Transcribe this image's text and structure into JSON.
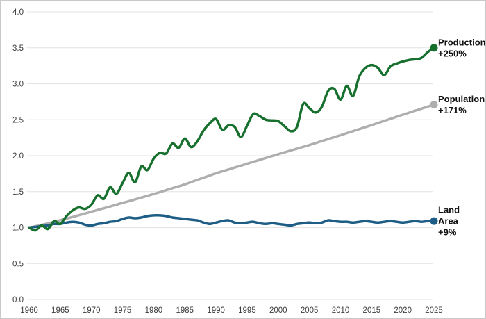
{
  "colors": {
    "background": "#ffffff",
    "frame_border": "#c9c9c9",
    "gridline": "#e3e3e3",
    "tick_text": "#3c3c3c",
    "label_text": "#111111",
    "production_green": "#17702d",
    "population_gray": "#aeaeae",
    "land_blue": "#1d5d86"
  },
  "chart_data": {
    "type": "line",
    "title": "",
    "xlabel": "",
    "ylabel": "",
    "x_start": 1960,
    "x_end": 2025,
    "x_step": 1,
    "ylim": [
      0,
      4
    ],
    "grid": true,
    "legend_position": "end-of-line-labels",
    "yticks": [
      "0.0",
      "0.5",
      "1.0",
      "1.5",
      "2.0",
      "2.5",
      "3.0",
      "3.5",
      "4.0"
    ],
    "xticks": [
      1960,
      1965,
      1970,
      1975,
      1980,
      1985,
      1990,
      1995,
      2000,
      2005,
      2010,
      2015,
      2020,
      2025
    ],
    "series": [
      {
        "name": "Population",
        "end_label_lines": [
          "Population",
          "+171%"
        ],
        "change_pct": "+171%",
        "color": "#aeaeae",
        "values": [
          1.0,
          1.018,
          1.037,
          1.058,
          1.08,
          1.102,
          1.125,
          1.148,
          1.172,
          1.196,
          1.221,
          1.245,
          1.269,
          1.293,
          1.318,
          1.343,
          1.367,
          1.392,
          1.417,
          1.442,
          1.468,
          1.494,
          1.521,
          1.548,
          1.574,
          1.601,
          1.632,
          1.663,
          1.694,
          1.724,
          1.755,
          1.782,
          1.808,
          1.835,
          1.861,
          1.888,
          1.915,
          1.941,
          1.968,
          1.994,
          2.021,
          2.046,
          2.072,
          2.097,
          2.123,
          2.148,
          2.175,
          2.203,
          2.23,
          2.258,
          2.285,
          2.313,
          2.341,
          2.369,
          2.397,
          2.425,
          2.454,
          2.483,
          2.512,
          2.541,
          2.57,
          2.598,
          2.626,
          2.654,
          2.682,
          2.71
        ]
      },
      {
        "name": "Land Area",
        "end_label_lines": [
          "Land",
          "Area",
          "+9%"
        ],
        "change_pct": "+9%",
        "color": "#1d5d86",
        "values": [
          1.0,
          1.01,
          1.02,
          1.03,
          1.05,
          1.05,
          1.07,
          1.08,
          1.07,
          1.04,
          1.03,
          1.05,
          1.06,
          1.08,
          1.09,
          1.12,
          1.14,
          1.13,
          1.14,
          1.16,
          1.17,
          1.17,
          1.16,
          1.14,
          1.13,
          1.12,
          1.11,
          1.1,
          1.07,
          1.05,
          1.07,
          1.09,
          1.1,
          1.07,
          1.06,
          1.07,
          1.08,
          1.06,
          1.05,
          1.06,
          1.05,
          1.04,
          1.03,
          1.05,
          1.06,
          1.07,
          1.06,
          1.07,
          1.1,
          1.09,
          1.08,
          1.08,
          1.07,
          1.08,
          1.09,
          1.08,
          1.07,
          1.08,
          1.09,
          1.08,
          1.07,
          1.08,
          1.09,
          1.08,
          1.09,
          1.09
        ]
      },
      {
        "name": "Production",
        "end_label_lines": [
          "Production",
          "+250%"
        ],
        "change_pct": "+250%",
        "color": "#17702d",
        "values": [
          1.0,
          0.96,
          1.03,
          0.98,
          1.09,
          1.05,
          1.16,
          1.24,
          1.28,
          1.26,
          1.32,
          1.45,
          1.4,
          1.56,
          1.47,
          1.62,
          1.76,
          1.63,
          1.85,
          1.8,
          1.96,
          2.04,
          2.03,
          2.17,
          2.11,
          2.24,
          2.12,
          2.2,
          2.35,
          2.45,
          2.51,
          2.36,
          2.42,
          2.4,
          2.26,
          2.42,
          2.58,
          2.55,
          2.5,
          2.49,
          2.48,
          2.41,
          2.34,
          2.4,
          2.72,
          2.66,
          2.6,
          2.68,
          2.9,
          2.93,
          2.78,
          2.97,
          2.83,
          3.1,
          3.22,
          3.26,
          3.22,
          3.12,
          3.24,
          3.28,
          3.31,
          3.33,
          3.34,
          3.36,
          3.44,
          3.5
        ]
      }
    ]
  }
}
